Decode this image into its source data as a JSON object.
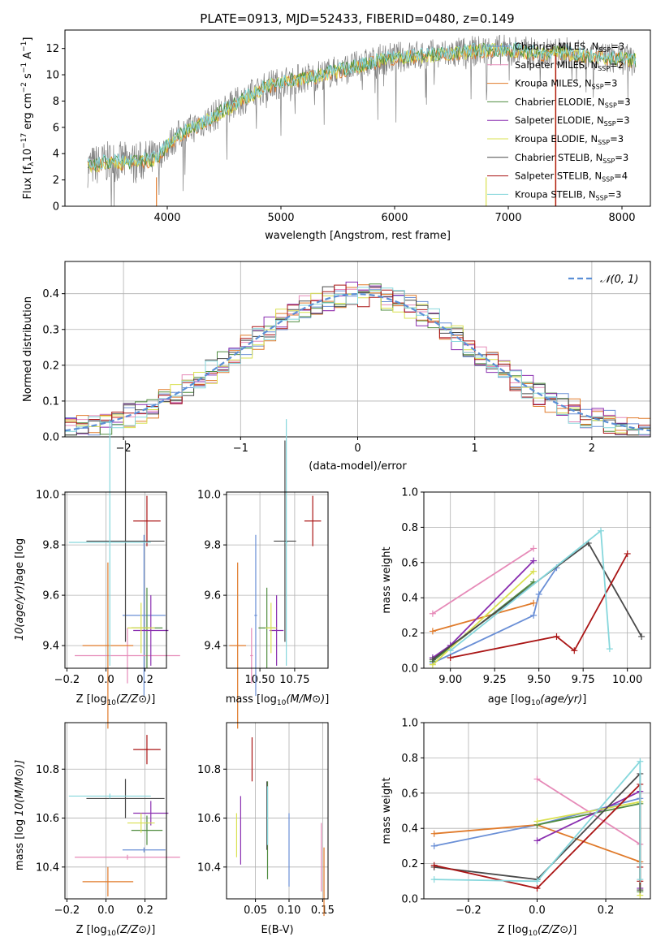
{
  "figure": {
    "title": "PLATE=0913, MJD=52433, FIBERID=0480, z=0.149"
  },
  "colors": {
    "chabrier_miles": "#6a8fd6",
    "salpeter_miles": "#e68ab8",
    "kroupa_miles": "#e07a2a",
    "chabrier_elodie": "#4f8c3f",
    "salpeter_elodie": "#8a2fb0",
    "kroupa_elodie": "#d9e050",
    "chabrier_stelib": "#4a4a4a",
    "salpeter_stelib": "#aa1515",
    "kroupa_stelib": "#86d7dc",
    "spectrum": "#808080",
    "normal": "#5b8fd6"
  },
  "chart_data": [
    {
      "id": "spectrum",
      "type": "line",
      "title": "PLATE=0913, MJD=52433, FIBERID=0480, z=0.149",
      "xlabel": "wavelength [Angstrom, rest frame]",
      "ylabel": "Flux [f_λ 10^-17 erg cm^-2 s^-1 A^-1]",
      "xlim": [
        3100,
        8250
      ],
      "ylim": [
        0,
        13.4
      ],
      "xticks": [
        4000,
        5000,
        6000,
        7000,
        8000
      ],
      "yticks": [
        0,
        2,
        4,
        6,
        8,
        10,
        12
      ],
      "legend_position": "top-right",
      "series": [
        {
          "name": "Chabrier MILES, N_SSP=3",
          "label_main": "Chabrier MILES, N",
          "label_sub": "SSP",
          "label_tail": "=3",
          "color_key": "chabrier_miles"
        },
        {
          "name": "Salpeter MILES, N_SSP=2",
          "label_main": "Salpeter MILES, N",
          "label_sub": "SSP",
          "label_tail": "=2",
          "color_key": "salpeter_miles"
        },
        {
          "name": "Kroupa MILES, N_SSP=3",
          "label_main": "Kroupa MILES, N",
          "label_sub": "SSP",
          "label_tail": "=3",
          "color_key": "kroupa_miles"
        },
        {
          "name": "Chabrier ELODIE, N_SSP=3",
          "label_main": "Chabrier ELODIE, N",
          "label_sub": "SSP",
          "label_tail": "=3",
          "color_key": "chabrier_elodie"
        },
        {
          "name": "Salpeter ELODIE, N_SSP=3",
          "label_main": "Salpeter ELODIE, N",
          "label_sub": "SSP",
          "label_tail": "=3",
          "color_key": "salpeter_elodie"
        },
        {
          "name": "Kroupa ELODIE, N_SSP=3",
          "label_main": "Kroupa ELODIE, N",
          "label_sub": "SSP",
          "label_tail": "=3",
          "color_key": "kroupa_elodie"
        },
        {
          "name": "Chabrier STELIB, N_SSP=3",
          "label_main": "Chabrier STELIB, N",
          "label_sub": "SSP",
          "label_tail": "=3",
          "color_key": "chabrier_stelib"
        },
        {
          "name": "Salpeter STELIB, N_SSP=4",
          "label_main": "Salpeter STELIB, N",
          "label_sub": "SSP",
          "label_tail": "=4",
          "color_key": "salpeter_stelib"
        },
        {
          "name": "Kroupa STELIB, N_SSP=3",
          "label_main": "Kroupa STELIB, N",
          "label_sub": "SSP",
          "label_tail": "=3",
          "color_key": "kroupa_stelib"
        }
      ],
      "continuum_points": [
        [
          3300,
          3.0
        ],
        [
          3500,
          3.4
        ],
        [
          3700,
          3.3
        ],
        [
          3900,
          3.6
        ],
        [
          4000,
          4.6
        ],
        [
          4100,
          5.4
        ],
        [
          4300,
          6.3
        ],
        [
          4500,
          7.3
        ],
        [
          4700,
          8.3
        ],
        [
          4900,
          9.2
        ],
        [
          5100,
          9.6
        ],
        [
          5300,
          9.9
        ],
        [
          5500,
          10.3
        ],
        [
          5700,
          10.7
        ],
        [
          5900,
          11.2
        ],
        [
          6100,
          11.4
        ],
        [
          6300,
          11.5
        ],
        [
          6500,
          11.6
        ],
        [
          6700,
          11.8
        ],
        [
          6900,
          11.9
        ],
        [
          7100,
          11.8
        ],
        [
          7300,
          11.6
        ],
        [
          7500,
          11.7
        ],
        [
          7700,
          11.4
        ],
        [
          7900,
          11.3
        ],
        [
          8100,
          11.1
        ]
      ]
    },
    {
      "id": "residuals",
      "type": "line",
      "xlabel": "(data-model)/error",
      "ylabel": "Normed distribution",
      "xlim": [
        -2.5,
        2.5
      ],
      "ylim": [
        0,
        0.49
      ],
      "xticks": [
        -2,
        -1,
        0,
        1,
        2
      ],
      "yticks": [
        0.0,
        0.1,
        0.2,
        0.3,
        0.4
      ],
      "legend": "𝒩(0, 1)",
      "legend_position": "top-right"
    },
    {
      "id": "age_vs_Z",
      "type": "scatter",
      "xlabel": "Z [log10(Z/Z⊙)]",
      "ylabel": "age [log10(age/yr)]",
      "xlim": [
        -0.21,
        0.31
      ],
      "ylim": [
        9.31,
        10.01
      ],
      "xticks": [
        -0.2,
        0.0,
        0.2
      ],
      "yticks": [
        9.4,
        9.6,
        9.8,
        10.0
      ],
      "points": [
        {
          "color_key": "chabrier_miles",
          "x": 0.195,
          "xerr": 0.11,
          "y": 9.52,
          "yerr": 0.32
        },
        {
          "color_key": "salpeter_miles",
          "x": 0.11,
          "xerr": 0.27,
          "y": 9.36,
          "yerr": 0.11
        },
        {
          "color_key": "kroupa_miles",
          "x": 0.01,
          "xerr": 0.13,
          "y": 9.4,
          "yerr": 0.33
        },
        {
          "color_key": "chabrier_elodie",
          "x": 0.21,
          "xerr": 0.08,
          "y": 9.47,
          "yerr": 0.16
        },
        {
          "color_key": "salpeter_elodie",
          "x": 0.23,
          "xerr": 0.09,
          "y": 9.46,
          "yerr": 0.14
        },
        {
          "color_key": "kroupa_elodie",
          "x": 0.18,
          "xerr": 0.07,
          "y": 9.47,
          "yerr": 0.1
        },
        {
          "color_key": "chabrier_stelib",
          "x": 0.1,
          "xerr": 0.2,
          "y": 9.815,
          "yerr": 0.4
        },
        {
          "color_key": "salpeter_stelib",
          "x": 0.21,
          "xerr": 0.07,
          "y": 9.895,
          "yerr": 0.1
        },
        {
          "color_key": "kroupa_stelib",
          "x": 0.02,
          "xerr": 0.21,
          "y": 9.81,
          "yerr": 0.49
        }
      ]
    },
    {
      "id": "age_vs_mass",
      "type": "scatter",
      "xlabel": "mass [log10(M/M⊙)]",
      "ylabel": "",
      "xlim": [
        10.26,
        10.99
      ],
      "ylim": [
        9.31,
        10.01
      ],
      "xticks": [
        10.5,
        10.75
      ],
      "yticks": [
        9.4,
        9.6,
        9.8,
        10.0
      ],
      "points": [
        {
          "color_key": "chabrier_miles",
          "x": 10.47,
          "xerr": 0.01,
          "y": 9.52,
          "yerr": 0.32
        },
        {
          "color_key": "salpeter_miles",
          "x": 10.44,
          "xerr": 0.01,
          "y": 9.36,
          "yerr": 0.11
        },
        {
          "color_key": "kroupa_miles",
          "x": 10.34,
          "xerr": 0.06,
          "y": 9.4,
          "yerr": 0.33
        },
        {
          "color_key": "chabrier_elodie",
          "x": 10.55,
          "xerr": 0.06,
          "y": 9.47,
          "yerr": 0.16
        },
        {
          "color_key": "salpeter_elodie",
          "x": 10.62,
          "xerr": 0.05,
          "y": 9.46,
          "yerr": 0.14
        },
        {
          "color_key": "kroupa_elodie",
          "x": 10.58,
          "xerr": 0.04,
          "y": 9.47,
          "yerr": 0.1
        },
        {
          "color_key": "chabrier_stelib",
          "x": 10.68,
          "xerr": 0.08,
          "y": 9.815,
          "yerr": 0.4
        },
        {
          "color_key": "salpeter_stelib",
          "x": 10.88,
          "xerr": 0.06,
          "y": 9.895,
          "yerr": 0.1
        },
        {
          "color_key": "kroupa_stelib",
          "x": 10.69,
          "xerr": 0.01,
          "y": 9.81,
          "yerr": 0.49
        }
      ]
    },
    {
      "id": "mass_weight_vs_age",
      "type": "line",
      "xlabel": "age [log10(age/yr)]",
      "ylabel": "mass weight",
      "xlim": [
        8.85,
        10.13
      ],
      "ylim": [
        0,
        1
      ],
      "xticks": [
        9.0,
        9.25,
        9.5,
        9.75,
        10.0
      ],
      "yticks": [
        0.0,
        0.2,
        0.4,
        0.6,
        0.8,
        1.0
      ],
      "series": [
        {
          "color_key": "chabrier_miles",
          "x": [
            8.9,
            9.47,
            9.5,
            9.6
          ],
          "y": [
            0.03,
            0.3,
            0.42,
            0.57
          ]
        },
        {
          "color_key": "salpeter_miles",
          "x": [
            8.9,
            9.47
          ],
          "y": [
            0.31,
            0.68
          ]
        },
        {
          "color_key": "kroupa_miles",
          "x": [
            8.9,
            9.47
          ],
          "y": [
            0.21,
            0.37
          ]
        },
        {
          "color_key": "chabrier_elodie",
          "x": [
            8.9,
            9.47
          ],
          "y": [
            0.04,
            0.49
          ]
        },
        {
          "color_key": "salpeter_elodie",
          "x": [
            8.9,
            9.0,
            9.47
          ],
          "y": [
            0.06,
            0.13,
            0.61
          ]
        },
        {
          "color_key": "kroupa_elodie",
          "x": [
            8.9,
            9.47
          ],
          "y": [
            0.02,
            0.55
          ]
        },
        {
          "color_key": "chabrier_stelib",
          "x": [
            8.9,
            9.78,
            10.08
          ],
          "y": [
            0.05,
            0.71,
            0.18
          ]
        },
        {
          "color_key": "salpeter_stelib",
          "x": [
            9.0,
            9.6,
            9.7,
            10.0
          ],
          "y": [
            0.06,
            0.18,
            0.1,
            0.65
          ]
        },
        {
          "color_key": "kroupa_stelib",
          "x": [
            9.0,
            9.85,
            9.9
          ],
          "y": [
            0.1,
            0.78,
            0.11
          ]
        }
      ]
    },
    {
      "id": "mass_vs_Z",
      "type": "scatter",
      "xlabel": "Z [log10(Z/Z⊙)]",
      "ylabel": "mass [log10(M/M⊙)]",
      "xlim": [
        -0.21,
        0.31
      ],
      "ylim": [
        10.27,
        10.99
      ],
      "xticks": [
        -0.2,
        0.0,
        0.2
      ],
      "yticks": [
        10.4,
        10.6,
        10.8
      ],
      "points": [
        {
          "color_key": "chabrier_miles",
          "x": 0.195,
          "xerr": 0.11,
          "y": 10.47,
          "yerr": 0.01
        },
        {
          "color_key": "salpeter_miles",
          "x": 0.11,
          "xerr": 0.27,
          "y": 10.44,
          "yerr": 0.01
        },
        {
          "color_key": "kroupa_miles",
          "x": 0.01,
          "xerr": 0.13,
          "y": 10.34,
          "yerr": 0.06
        },
        {
          "color_key": "chabrier_elodie",
          "x": 0.21,
          "xerr": 0.08,
          "y": 10.55,
          "yerr": 0.06
        },
        {
          "color_key": "salpeter_elodie",
          "x": 0.23,
          "xerr": 0.09,
          "y": 10.62,
          "yerr": 0.05
        },
        {
          "color_key": "kroupa_elodie",
          "x": 0.18,
          "xerr": 0.07,
          "y": 10.58,
          "yerr": 0.04
        },
        {
          "color_key": "chabrier_stelib",
          "x": 0.1,
          "xerr": 0.2,
          "y": 10.68,
          "yerr": 0.08
        },
        {
          "color_key": "salpeter_stelib",
          "x": 0.21,
          "xerr": 0.07,
          "y": 10.88,
          "yerr": 0.06
        },
        {
          "color_key": "kroupa_stelib",
          "x": 0.02,
          "xerr": 0.21,
          "y": 10.69,
          "yerr": 0.01
        }
      ]
    },
    {
      "id": "mass_vs_ebv",
      "type": "scatter",
      "xlabel": "E(B-V)",
      "ylabel": "",
      "xlim": [
        0.007,
        0.158
      ],
      "ylim": [
        10.27,
        10.99
      ],
      "xticks": [
        0.05,
        0.1,
        0.15
      ],
      "yticks": [
        10.4,
        10.6,
        10.8
      ],
      "points": [
        {
          "color_key": "chabrier_miles",
          "x": 0.1,
          "y": 10.47,
          "yerr": 0.15
        },
        {
          "color_key": "salpeter_miles",
          "x": 0.148,
          "y": 10.44,
          "yerr": 0.14
        },
        {
          "color_key": "kroupa_miles",
          "x": 0.152,
          "y": 10.34,
          "yerr": 0.14
        },
        {
          "color_key": "chabrier_elodie",
          "x": 0.068,
          "y": 10.55,
          "yerr": 0.2
        },
        {
          "color_key": "salpeter_elodie",
          "x": 0.028,
          "y": 10.55,
          "yerr": 0.14
        },
        {
          "color_key": "kroupa_elodie",
          "x": 0.022,
          "y": 10.53,
          "yerr": 0.09
        },
        {
          "color_key": "chabrier_stelib",
          "x": 0.067,
          "y": 10.61,
          "yerr": 0.14
        },
        {
          "color_key": "salpeter_stelib",
          "x": 0.045,
          "y": 10.84,
          "yerr": 0.09
        },
        {
          "color_key": "kroupa_stelib",
          "x": 0.068,
          "y": 10.61,
          "yerr": 0.12
        }
      ]
    },
    {
      "id": "mass_weight_vs_Z",
      "type": "line",
      "xlabel": "Z [log10(Z/Z⊙)]",
      "ylabel": "mass weight",
      "xlim": [
        -0.33,
        0.33
      ],
      "ylim": [
        0,
        1
      ],
      "xticks": [
        -0.2,
        0.0,
        0.2
      ],
      "yticks": [
        0.0,
        0.2,
        0.4,
        0.6,
        0.8,
        1.0
      ],
      "series": [
        {
          "color_key": "chabrier_miles",
          "x": [
            -0.3,
            0.0,
            0.3
          ],
          "y": [
            0.3,
            0.42,
            0.57
          ]
        },
        {
          "color_key": "salpeter_miles",
          "x": [
            0.0,
            0.3
          ],
          "y": [
            0.68,
            0.31
          ]
        },
        {
          "color_key": "kroupa_miles",
          "x": [
            -0.3,
            0.0,
            0.3
          ],
          "y": [
            0.37,
            0.42,
            0.21
          ]
        },
        {
          "color_key": "chabrier_elodie",
          "x": [
            0.0,
            0.3,
            0.3
          ],
          "y": [
            0.42,
            0.54,
            0.04
          ]
        },
        {
          "color_key": "salpeter_elodie",
          "x": [
            0.0,
            0.3,
            0.3
          ],
          "y": [
            0.33,
            0.61,
            0.06
          ]
        },
        {
          "color_key": "kroupa_elodie",
          "x": [
            0.0,
            0.3,
            0.3
          ],
          "y": [
            0.44,
            0.55,
            0.02
          ]
        },
        {
          "color_key": "chabrier_stelib",
          "x": [
            -0.3,
            0.0,
            0.3,
            0.3
          ],
          "y": [
            0.18,
            0.11,
            0.71,
            0.05
          ]
        },
        {
          "color_key": "salpeter_stelib",
          "x": [
            -0.3,
            0.0,
            0.3,
            0.3,
            0.3
          ],
          "y": [
            0.19,
            0.06,
            0.65,
            0.1,
            0.18
          ]
        },
        {
          "color_key": "kroupa_stelib",
          "x": [
            -0.3,
            0.0,
            0.3,
            0.3
          ],
          "y": [
            0.11,
            0.1,
            0.78,
            0.11
          ]
        }
      ]
    }
  ]
}
